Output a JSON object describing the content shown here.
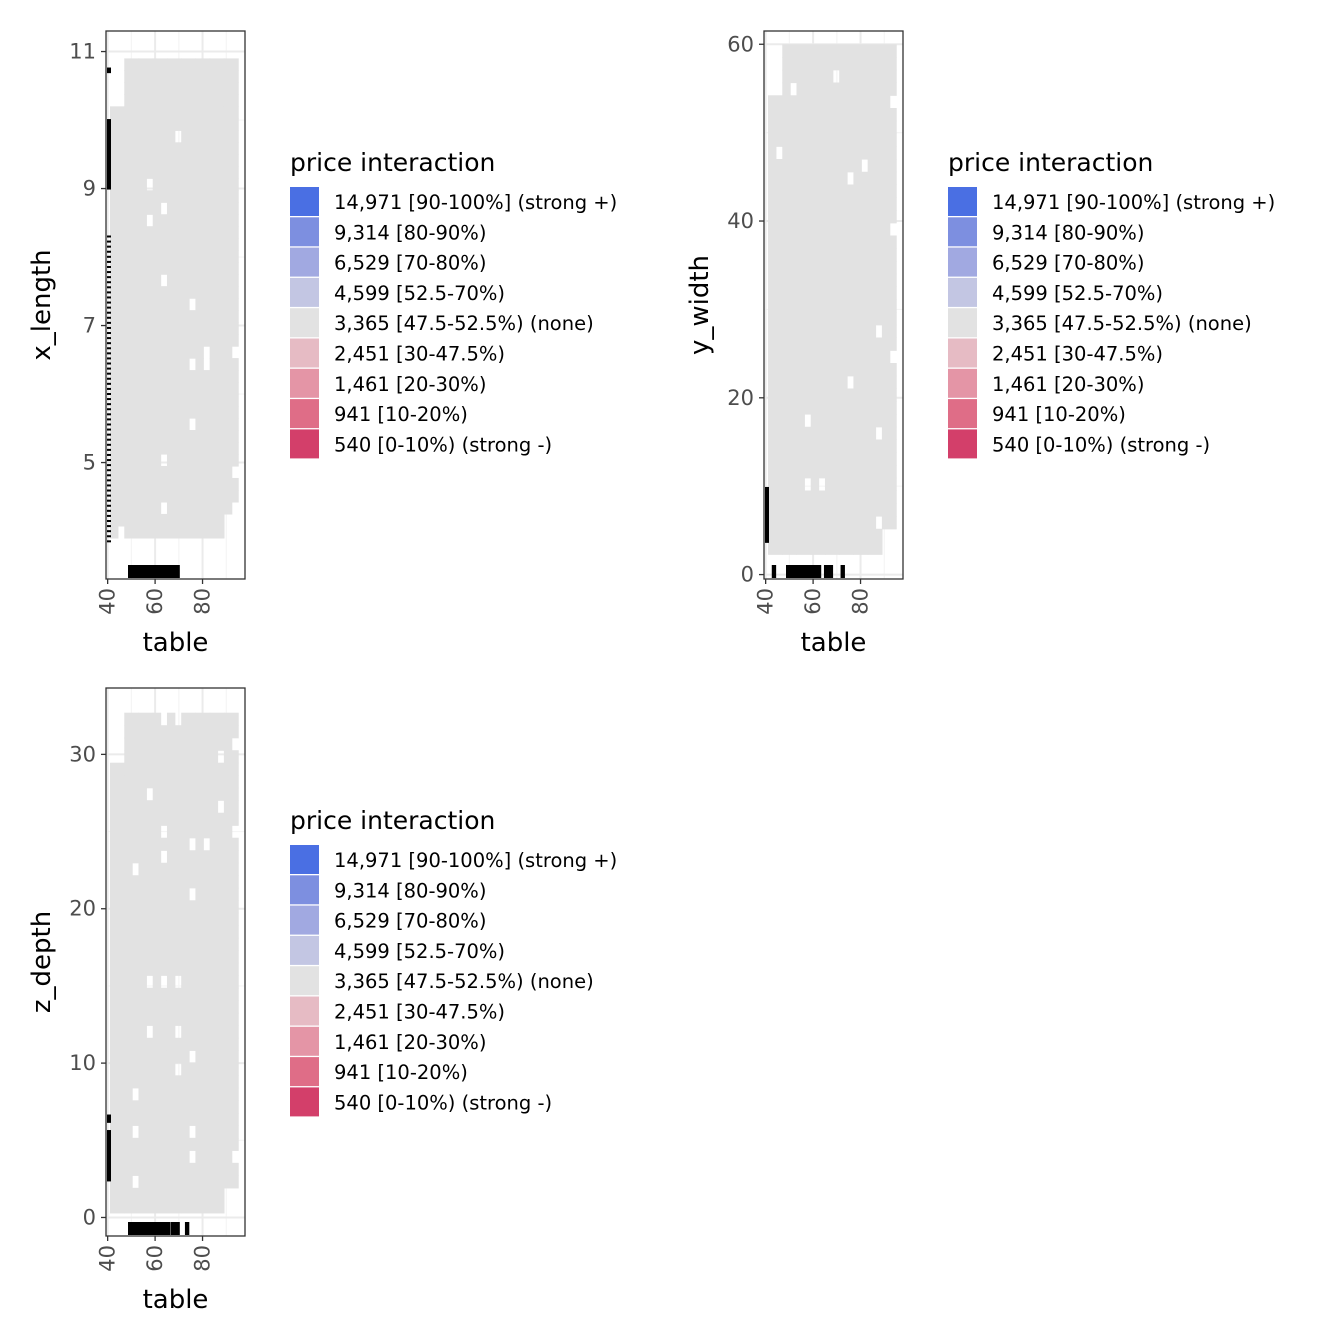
{
  "colors": {
    "panel_border": "#333333",
    "grid_major": "#ebebeb",
    "grid_minor": "#f5f5f5",
    "tile_fill": "#e2e2e2",
    "rug": "#000000",
    "tick_text": "#4d4d4d"
  },
  "legend": {
    "title": "price interaction",
    "items": [
      {
        "label": "14,971 [90-100%] (strong +)",
        "color": "#4a6fe3"
      },
      {
        "label": "9,314 [80-90%)",
        "color": "#7d8fe0"
      },
      {
        "label": "6,529 [70-80%)",
        "color": "#a1a9e1"
      },
      {
        "label": "4,599 [52.5-70%)",
        "color": "#c3c6e3"
      },
      {
        "label": "3,365 [47.5-52.5%) (none)",
        "color": "#e2e2e2"
      },
      {
        "label": "2,451 [30-47.5%)",
        "color": "#e6bbc4"
      },
      {
        "label": "1,461 [20-30%)",
        "color": "#e495a6"
      },
      {
        "label": "941 [10-20%)",
        "color": "#df6d87"
      },
      {
        "label": "540 [0-10%) (strong -)",
        "color": "#d33f6a"
      }
    ]
  },
  "chart_data": [
    {
      "type": "heatmap",
      "xlabel": "table",
      "ylabel": "x_length",
      "xlim": [
        39.3,
        97.9
      ],
      "ylim": [
        3.3,
        11.3
      ],
      "x_ticks": [
        40,
        60,
        80
      ],
      "x_tick_labels": [
        "40",
        "60",
        "80"
      ],
      "y_ticks": [
        5,
        7,
        9,
        11
      ],
      "y_tick_labels": [
        "5",
        "7",
        "9",
        "11"
      ],
      "tile_x_range": [
        41,
        95
      ],
      "tile_y_range": [
        3.9,
        10.9
      ],
      "grid": true,
      "legend_position": "right",
      "x_rug": [
        [
          49,
          70
        ]
      ],
      "y_rug": [
        [
          3.85,
          8.3
        ],
        [
          9.0,
          10.0
        ],
        [
          10.7,
          10.75
        ]
      ]
    },
    {
      "type": "heatmap",
      "xlabel": "table",
      "ylabel": "y_width",
      "xlim": [
        39.3,
        97.9
      ],
      "ylim": [
        -0.5,
        61.5
      ],
      "x_ticks": [
        40,
        60,
        80
      ],
      "x_tick_labels": [
        "40",
        "60",
        "80"
      ],
      "y_ticks": [
        0,
        20,
        40,
        60
      ],
      "y_tick_labels": [
        "0",
        "20",
        "40",
        "60"
      ],
      "tile_x_range": [
        41,
        95
      ],
      "tile_y_range": [
        2.3,
        60
      ],
      "grid": true,
      "legend_position": "right",
      "x_rug": [
        [
          43,
          44
        ],
        [
          49,
          63
        ],
        [
          65,
          68
        ],
        [
          72,
          73
        ]
      ],
      "y_rug": [
        [
          3.7,
          9.8
        ]
      ]
    },
    {
      "type": "heatmap",
      "xlabel": "table",
      "ylabel": "z_depth",
      "xlim": [
        39.3,
        97.9
      ],
      "ylim": [
        -1.2,
        34.3
      ],
      "x_ticks": [
        40,
        60,
        80
      ],
      "x_tick_labels": [
        "40",
        "60",
        "80"
      ],
      "y_ticks": [
        0,
        10,
        20,
        30
      ],
      "y_tick_labels": [
        "0",
        "10",
        "20",
        "30"
      ],
      "tile_x_range": [
        41,
        95
      ],
      "tile_y_range": [
        0.3,
        32.7
      ],
      "grid": true,
      "legend_position": "right",
      "x_rug": [
        [
          49,
          66
        ],
        [
          67,
          70
        ],
        [
          73,
          74
        ]
      ],
      "y_rug": [
        [
          2.4,
          5.6
        ],
        [
          6.2,
          6.6
        ]
      ]
    }
  ]
}
